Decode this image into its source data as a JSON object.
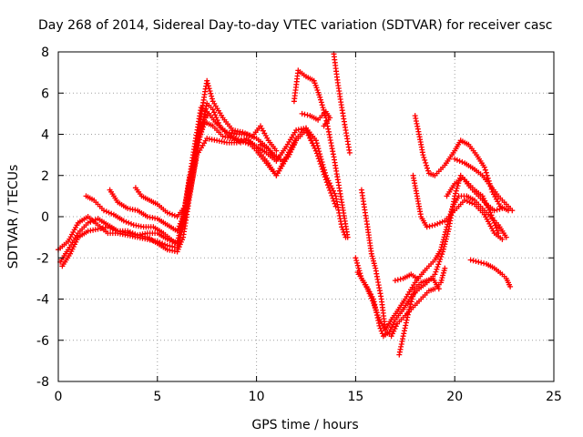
{
  "chart_data": {
    "type": "scatter",
    "title": "Day 268 of 2014, Sidereal Day-to-day VTEC variation (SDTVAR) for receiver casc",
    "xlabel": "GPS time / hours",
    "ylabel": "SDTVAR / TECUs",
    "xlim": [
      0,
      25
    ],
    "ylim": [
      -8,
      8
    ],
    "xticks": [
      "0",
      "5",
      "10",
      "15",
      "20",
      "25"
    ],
    "yticks": [
      "-8",
      "-6",
      "-4",
      "-2",
      "0",
      "2",
      "4",
      "6",
      "8"
    ],
    "grid": true,
    "marker": "+",
    "color": "#ff0000",
    "series": [
      {
        "name": "trace-1",
        "points": [
          [
            0.0,
            -1.6
          ],
          [
            0.5,
            -1.2
          ],
          [
            1.0,
            -0.3
          ],
          [
            1.5,
            0.0
          ],
          [
            2.0,
            -0.4
          ],
          [
            2.5,
            -0.8
          ],
          [
            3.0,
            -0.8
          ],
          [
            3.5,
            -0.9
          ],
          [
            4.0,
            -1.0
          ],
          [
            4.5,
            -1.1
          ],
          [
            5.0,
            -1.2
          ],
          [
            5.5,
            -1.4
          ],
          [
            6.0,
            -1.5
          ],
          [
            6.3,
            -0.5
          ],
          [
            6.6,
            1.0
          ],
          [
            7.0,
            3.0
          ],
          [
            7.5,
            3.8
          ],
          [
            8.0,
            3.7
          ],
          [
            8.5,
            3.6
          ],
          [
            9.0,
            3.6
          ],
          [
            9.5,
            3.8
          ],
          [
            10.0,
            3.4
          ],
          [
            10.5,
            3.1
          ],
          [
            11.0,
            2.7
          ],
          [
            11.5,
            3.4
          ],
          [
            12.0,
            4.2
          ],
          [
            12.5,
            4.3
          ],
          [
            13.0,
            3.7
          ],
          [
            13.5,
            2.0
          ],
          [
            14.0,
            1.0
          ],
          [
            14.3,
            -0.5
          ],
          [
            14.5,
            -1.0
          ]
        ]
      },
      {
        "name": "trace-2",
        "points": [
          [
            0.1,
            -2.2
          ],
          [
            0.5,
            -1.6
          ],
          [
            1.0,
            -0.8
          ],
          [
            1.5,
            -0.3
          ],
          [
            2.0,
            -0.1
          ],
          [
            2.5,
            -0.4
          ],
          [
            3.0,
            -0.7
          ],
          [
            3.5,
            -0.7
          ],
          [
            4.0,
            -0.9
          ],
          [
            4.5,
            -0.8
          ],
          [
            5.0,
            -0.8
          ],
          [
            5.5,
            -1.1
          ],
          [
            6.0,
            -1.3
          ],
          [
            6.3,
            0.0
          ],
          [
            6.6,
            1.8
          ],
          [
            7.0,
            3.5
          ],
          [
            7.4,
            4.6
          ],
          [
            7.8,
            4.4
          ],
          [
            8.3,
            3.9
          ],
          [
            8.8,
            3.8
          ],
          [
            9.2,
            3.6
          ],
          [
            9.6,
            3.7
          ],
          [
            10.0,
            3.3
          ],
          [
            10.5,
            2.7
          ],
          [
            11.0,
            2.0
          ],
          [
            11.5,
            2.9
          ],
          [
            12.0,
            3.8
          ],
          [
            12.5,
            4.3
          ],
          [
            13.0,
            3.2
          ],
          [
            13.5,
            1.8
          ],
          [
            14.0,
            0.5
          ]
        ]
      },
      {
        "name": "trace-3",
        "points": [
          [
            0.2,
            -2.4
          ],
          [
            0.6,
            -1.8
          ],
          [
            1.0,
            -1.0
          ],
          [
            1.5,
            -0.7
          ],
          [
            2.0,
            -0.6
          ],
          [
            2.5,
            -0.5
          ],
          [
            3.0,
            -0.7
          ],
          [
            3.5,
            -0.8
          ],
          [
            4.0,
            -0.9
          ],
          [
            4.5,
            -1.0
          ],
          [
            5.0,
            -1.3
          ],
          [
            5.5,
            -1.6
          ],
          [
            6.0,
            -1.7
          ],
          [
            6.3,
            -1.0
          ],
          [
            6.6,
            0.8
          ],
          [
            7.0,
            3.2
          ],
          [
            7.5,
            5.5
          ],
          [
            7.8,
            5.2
          ],
          [
            8.2,
            4.3
          ],
          [
            8.7,
            3.9
          ],
          [
            9.2,
            3.7
          ],
          [
            9.7,
            3.5
          ],
          [
            10.0,
            3.2
          ],
          [
            10.5,
            2.6
          ],
          [
            11.0,
            2.0
          ],
          [
            11.5,
            2.8
          ],
          [
            12.0,
            3.7
          ],
          [
            12.5,
            4.2
          ],
          [
            13.0,
            3.2
          ]
        ]
      },
      {
        "name": "trace-4",
        "points": [
          [
            1.4,
            1.0
          ],
          [
            1.8,
            0.8
          ],
          [
            2.3,
            0.3
          ],
          [
            2.8,
            0.1
          ],
          [
            3.3,
            -0.2
          ],
          [
            3.8,
            -0.4
          ],
          [
            4.3,
            -0.5
          ],
          [
            4.8,
            -0.5
          ],
          [
            5.3,
            -0.8
          ],
          [
            5.8,
            -1.2
          ],
          [
            6.1,
            -1.3
          ],
          [
            6.4,
            0.5
          ],
          [
            6.8,
            3.0
          ],
          [
            7.2,
            5.3
          ],
          [
            7.6,
            5.0
          ],
          [
            8.0,
            4.5
          ],
          [
            8.5,
            4.1
          ],
          [
            9.0,
            4.0
          ],
          [
            9.5,
            4.0
          ],
          [
            10.0,
            3.8
          ],
          [
            10.5,
            3.4
          ],
          [
            11.0,
            2.8
          ]
        ]
      },
      {
        "name": "trace-5",
        "points": [
          [
            2.6,
            1.3
          ],
          [
            3.0,
            0.7
          ],
          [
            3.5,
            0.4
          ],
          [
            4.0,
            0.3
          ],
          [
            4.5,
            0.0
          ],
          [
            5.0,
            -0.1
          ],
          [
            5.5,
            -0.4
          ],
          [
            6.0,
            -0.7
          ],
          [
            6.5,
            0.5
          ],
          [
            7.0,
            3.8
          ],
          [
            7.5,
            6.6
          ],
          [
            7.8,
            5.6
          ],
          [
            8.3,
            4.8
          ],
          [
            8.8,
            4.2
          ],
          [
            9.3,
            4.1
          ],
          [
            9.8,
            3.9
          ],
          [
            10.2,
            4.4
          ],
          [
            10.6,
            3.7
          ],
          [
            11.0,
            3.2
          ]
        ]
      },
      {
        "name": "trace-6",
        "points": [
          [
            3.9,
            1.4
          ],
          [
            4.2,
            1.0
          ],
          [
            4.6,
            0.8
          ],
          [
            5.0,
            0.6
          ],
          [
            5.5,
            0.2
          ],
          [
            6.0,
            0.0
          ],
          [
            6.4,
            0.5
          ],
          [
            6.8,
            2.5
          ],
          [
            7.2,
            4.5
          ],
          [
            7.6,
            5.0
          ]
        ]
      },
      {
        "name": "trace-7",
        "points": [
          [
            11.9,
            5.6
          ],
          [
            12.1,
            7.1
          ],
          [
            12.5,
            6.8
          ],
          [
            12.9,
            6.6
          ],
          [
            13.2,
            5.8
          ],
          [
            13.5,
            4.8
          ],
          [
            13.9,
            2.9
          ],
          [
            14.3,
            0.7
          ],
          [
            14.6,
            -1.0
          ]
        ]
      },
      {
        "name": "trace-8",
        "points": [
          [
            13.9,
            7.9
          ],
          [
            14.1,
            6.5
          ],
          [
            14.3,
            5.3
          ],
          [
            14.5,
            4.2
          ],
          [
            14.7,
            3.1
          ]
        ]
      },
      {
        "name": "trace-9",
        "points": [
          [
            12.3,
            5.0
          ],
          [
            12.7,
            4.9
          ],
          [
            13.1,
            4.7
          ],
          [
            13.5,
            5.1
          ],
          [
            13.7,
            4.8
          ],
          [
            13.4,
            4.4
          ]
        ]
      },
      {
        "name": "trace-10",
        "points": [
          [
            15.0,
            -2.0
          ],
          [
            15.3,
            -3.0
          ],
          [
            15.6,
            -3.5
          ],
          [
            15.9,
            -4.2
          ],
          [
            16.2,
            -5.0
          ],
          [
            16.5,
            -5.5
          ],
          [
            16.8,
            -5.0
          ],
          [
            17.1,
            -4.6
          ],
          [
            17.5,
            -4.0
          ],
          [
            18.0,
            -3.2
          ],
          [
            18.5,
            -2.6
          ],
          [
            19.0,
            -2.1
          ],
          [
            19.3,
            -1.6
          ],
          [
            19.6,
            -0.5
          ],
          [
            19.9,
            0.5
          ],
          [
            20.2,
            1.0
          ],
          [
            20.6,
            1.0
          ],
          [
            21.0,
            0.8
          ],
          [
            21.4,
            0.4
          ],
          [
            21.8,
            0.0
          ],
          [
            22.2,
            -0.4
          ],
          [
            22.6,
            -1.0
          ]
        ]
      },
      {
        "name": "trace-11",
        "points": [
          [
            15.1,
            -2.7
          ],
          [
            15.5,
            -3.3
          ],
          [
            15.9,
            -4.0
          ],
          [
            16.2,
            -5.3
          ],
          [
            16.4,
            -5.8
          ],
          [
            16.7,
            -5.6
          ],
          [
            17.0,
            -5.0
          ],
          [
            17.4,
            -4.5
          ],
          [
            17.8,
            -3.9
          ],
          [
            18.2,
            -3.5
          ],
          [
            18.6,
            -3.2
          ],
          [
            19.0,
            -2.8
          ],
          [
            19.4,
            -1.7
          ],
          [
            19.7,
            -0.6
          ],
          [
            20.0,
            1.0
          ],
          [
            20.3,
            2.0
          ],
          [
            20.6,
            1.7
          ],
          [
            21.0,
            1.3
          ],
          [
            21.4,
            1.0
          ],
          [
            21.8,
            0.2
          ],
          [
            22.2,
            -0.8
          ]
        ]
      },
      {
        "name": "trace-12",
        "points": [
          [
            15.3,
            1.3
          ],
          [
            15.6,
            -0.5
          ],
          [
            15.8,
            -1.8
          ],
          [
            16.0,
            -2.5
          ],
          [
            16.3,
            -4.0
          ],
          [
            16.5,
            -5.5
          ],
          [
            16.8,
            -5.8
          ],
          [
            17.1,
            -5.2
          ],
          [
            17.5,
            -4.8
          ],
          [
            17.9,
            -4.4
          ],
          [
            18.3,
            -4.0
          ],
          [
            18.7,
            -3.6
          ],
          [
            19.0,
            -3.5
          ],
          [
            19.3,
            -3.2
          ],
          [
            19.5,
            -2.5
          ]
        ]
      },
      {
        "name": "trace-13",
        "points": [
          [
            17.2,
            -6.7
          ],
          [
            17.4,
            -5.8
          ],
          [
            17.7,
            -4.5
          ],
          [
            18.0,
            -3.5
          ],
          [
            18.3,
            -3.2
          ],
          [
            18.6,
            -3.1
          ],
          [
            18.9,
            -3.0
          ],
          [
            19.2,
            -3.5
          ]
        ]
      },
      {
        "name": "trace-14",
        "points": [
          [
            17.0,
            -3.1
          ],
          [
            17.4,
            -3.0
          ],
          [
            17.8,
            -2.8
          ],
          [
            18.1,
            -3.0
          ]
        ]
      },
      {
        "name": "trace-15",
        "points": [
          [
            18.0,
            4.9
          ],
          [
            18.2,
            4.0
          ],
          [
            18.4,
            3.0
          ],
          [
            18.7,
            2.1
          ],
          [
            19.0,
            2.0
          ],
          [
            19.5,
            2.5
          ],
          [
            20.0,
            3.2
          ],
          [
            20.3,
            3.7
          ],
          [
            20.7,
            3.5
          ],
          [
            21.1,
            3.0
          ],
          [
            21.5,
            2.4
          ],
          [
            21.9,
            1.2
          ],
          [
            22.3,
            0.5
          ],
          [
            22.7,
            0.3
          ]
        ]
      },
      {
        "name": "trace-16",
        "points": [
          [
            17.9,
            2.0
          ],
          [
            18.1,
            1.0
          ],
          [
            18.3,
            0.0
          ],
          [
            18.6,
            -0.5
          ],
          [
            19.0,
            -0.4
          ],
          [
            19.5,
            -0.2
          ],
          [
            20.0,
            0.3
          ],
          [
            20.5,
            0.8
          ],
          [
            21.0,
            0.6
          ],
          [
            21.5,
            0.1
          ],
          [
            22.0,
            -0.8
          ],
          [
            22.4,
            -1.1
          ]
        ]
      },
      {
        "name": "trace-17",
        "points": [
          [
            19.6,
            1.0
          ],
          [
            20.0,
            1.6
          ],
          [
            20.4,
            1.9
          ],
          [
            20.8,
            1.4
          ],
          [
            21.2,
            1.0
          ],
          [
            21.6,
            0.6
          ],
          [
            22.0,
            0.3
          ],
          [
            22.4,
            0.4
          ]
        ]
      },
      {
        "name": "trace-18",
        "points": [
          [
            20.0,
            2.8
          ],
          [
            20.5,
            2.6
          ],
          [
            21.0,
            2.3
          ],
          [
            21.4,
            2.0
          ],
          [
            21.8,
            1.5
          ],
          [
            22.2,
            1.0
          ],
          [
            22.6,
            0.6
          ],
          [
            22.9,
            0.3
          ]
        ]
      },
      {
        "name": "trace-19",
        "points": [
          [
            20.8,
            -2.1
          ],
          [
            21.2,
            -2.2
          ],
          [
            21.6,
            -2.3
          ],
          [
            22.0,
            -2.5
          ],
          [
            22.4,
            -2.8
          ],
          [
            22.6,
            -3.0
          ],
          [
            22.8,
            -3.4
          ]
        ]
      },
      {
        "name": "trace-20",
        "points": [
          [
            10.2,
            3.5
          ],
          [
            10.6,
            3.3
          ],
          [
            10.9,
            3.0
          ],
          [
            11.3,
            2.7
          ],
          [
            11.6,
            2.9
          ],
          [
            11.9,
            3.5
          ]
        ]
      }
    ]
  }
}
